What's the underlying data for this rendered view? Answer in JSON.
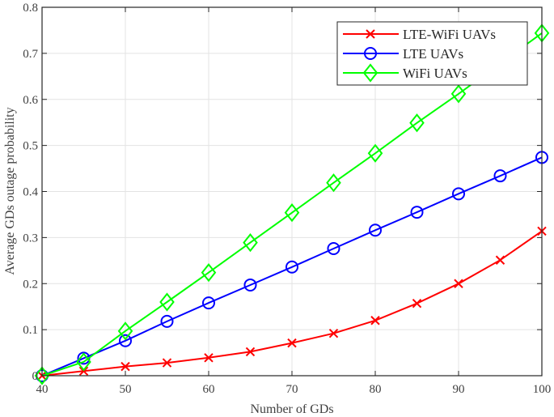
{
  "chart_data": {
    "type": "line",
    "title": "",
    "xlabel": "Number of GDs",
    "ylabel": "Average GDs outage probability",
    "xlim": [
      40,
      100
    ],
    "ylim": [
      0,
      0.8
    ],
    "grid": true,
    "legend_position": "upper right (inside)",
    "x": [
      40,
      45,
      50,
      55,
      60,
      65,
      70,
      75,
      80,
      85,
      90,
      95,
      100
    ],
    "xticks": [
      40,
      50,
      60,
      70,
      80,
      90,
      100
    ],
    "yticks": [
      0,
      0.1,
      0.2,
      0.3,
      0.4,
      0.5,
      0.6,
      0.7,
      0.8
    ],
    "ytick_labels": [
      "0",
      "0.1",
      "0.2",
      "0.3",
      "0.4",
      "0.5",
      "0.6",
      "0.7",
      "0.8"
    ],
    "series": [
      {
        "name": "LTE-WiFi UAVs",
        "color": "#ff0000",
        "marker": "x",
        "values": [
          0.0,
          0.01,
          0.02,
          0.028,
          0.039,
          0.052,
          0.071,
          0.092,
          0.12,
          0.157,
          0.2,
          0.251,
          0.314
        ]
      },
      {
        "name": "LTE UAVs",
        "color": "#0000ff",
        "marker": "circle",
        "values": [
          0.0,
          0.038,
          0.076,
          0.118,
          0.158,
          0.197,
          0.236,
          0.276,
          0.316,
          0.355,
          0.395,
          0.434,
          0.474
        ]
      },
      {
        "name": "WiFi UAVs",
        "color": "#00ff00",
        "marker": "diamond",
        "values": [
          0.0,
          0.03,
          0.097,
          0.16,
          0.224,
          0.289,
          0.354,
          0.419,
          0.483,
          0.549,
          0.612,
          0.678,
          0.744
        ]
      }
    ]
  },
  "legend": {
    "items": [
      {
        "label": "LTE-WiFi UAVs"
      },
      {
        "label": "LTE UAVs"
      },
      {
        "label": "WiFi UAVs"
      }
    ]
  },
  "axes": {
    "xlabel": "Number of GDs",
    "ylabel": "Average GDs outage probability"
  }
}
